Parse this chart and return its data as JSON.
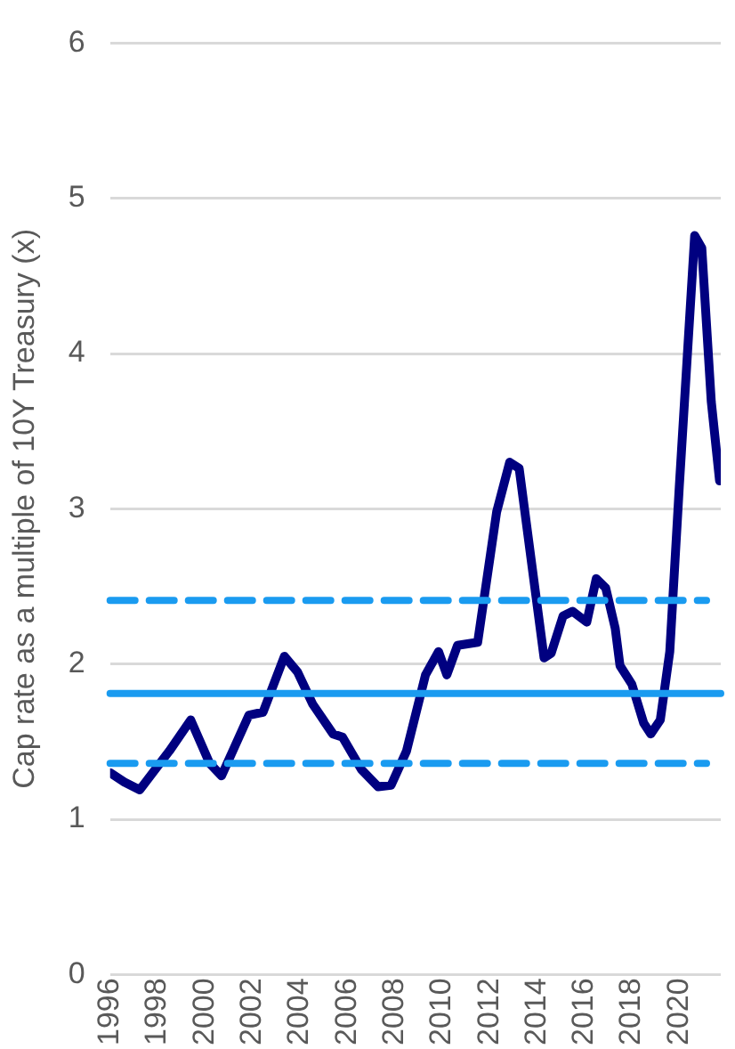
{
  "chart_data": {
    "type": "line",
    "ylabel": "Cap rate as a multiple of 10Y Treasury (x)",
    "x": [
      1996.0,
      1996.6,
      1997.25,
      1998.5,
      1999.4,
      2000.2,
      2000.7,
      2001.85,
      2002.45,
      2003.35,
      2003.9,
      2004.55,
      2005.4,
      2005.8,
      2006.6,
      2007.3,
      2007.85,
      2008.5,
      2009.3,
      2009.85,
      2010.2,
      2010.65,
      2011.5,
      2012.3,
      2012.85,
      2013.25,
      2013.8,
      2014.3,
      2014.6,
      2015.1,
      2015.5,
      2016.1,
      2016.5,
      2016.9,
      2017.3,
      2017.5,
      2018.0,
      2018.5,
      2018.8,
      2019.2,
      2019.6,
      2020.0,
      2020.65,
      2020.95,
      2021.35,
      2021.7
    ],
    "series": [
      {
        "color": "#000080",
        "values": [
          1.3,
          1.24,
          1.19,
          1.44,
          1.64,
          1.36,
          1.28,
          1.67,
          1.69,
          2.05,
          1.95,
          1.74,
          1.55,
          1.53,
          1.32,
          1.21,
          1.22,
          1.44,
          1.93,
          2.08,
          1.93,
          2.12,
          2.14,
          2.98,
          3.3,
          3.26,
          2.62,
          2.04,
          2.07,
          2.31,
          2.34,
          2.27,
          2.55,
          2.49,
          2.23,
          1.99,
          1.87,
          1.62,
          1.55,
          1.64,
          2.08,
          3.14,
          4.76,
          4.68,
          3.69,
          3.18
        ]
      }
    ],
    "xlim": [
      1996,
      2021.75
    ],
    "xticks": [
      1996,
      1998,
      2000,
      2002,
      2004,
      2006,
      2008,
      2010,
      2012,
      2014,
      2016,
      2018,
      2020
    ],
    "ylim": [
      0,
      6
    ],
    "yticks": [
      0,
      1,
      2,
      3,
      4,
      5,
      6
    ],
    "ref_lines": [
      {
        "axis": "y",
        "value": 1.81,
        "color": "#1a9bf0",
        "line_style": "solid"
      },
      {
        "axis": "y",
        "value": 2.41,
        "color": "#1a9bf0",
        "line_style": "dashed"
      },
      {
        "axis": "y",
        "value": 1.36,
        "color": "#1a9bf0",
        "line_style": "dashed"
      }
    ],
    "grid": "y",
    "legend": false,
    "marker": "none",
    "line_style": "solid"
  }
}
